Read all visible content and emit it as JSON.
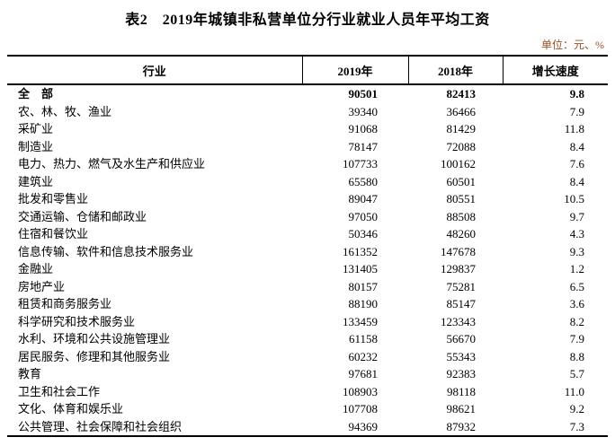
{
  "title": "表2　2019年城镇非私营单位分行业就业人员年平均工资",
  "unit_note": "单位：元、%",
  "colors": {
    "unit_note_color": "#9b4e24",
    "border_color": "#000000",
    "background": "#ffffff"
  },
  "table": {
    "headers": [
      "行业",
      "2019年",
      "2018年",
      "增长速度"
    ],
    "rows": [
      {
        "industry": "全　部",
        "y2019": "90501",
        "y2018": "82413",
        "growth": "9.8",
        "bold": true
      },
      {
        "industry": "农、林、牧、渔业",
        "y2019": "39340",
        "y2018": "36466",
        "growth": "7.9",
        "bold": false
      },
      {
        "industry": "采矿业",
        "y2019": "91068",
        "y2018": "81429",
        "growth": "11.8",
        "bold": false
      },
      {
        "industry": "制造业",
        "y2019": "78147",
        "y2018": "72088",
        "growth": "8.4",
        "bold": false
      },
      {
        "industry": "电力、热力、燃气及水生产和供应业",
        "y2019": "107733",
        "y2018": "100162",
        "growth": "7.6",
        "bold": false
      },
      {
        "industry": "建筑业",
        "y2019": "65580",
        "y2018": "60501",
        "growth": "8.4",
        "bold": false
      },
      {
        "industry": "批发和零售业",
        "y2019": "89047",
        "y2018": "80551",
        "growth": "10.5",
        "bold": false
      },
      {
        "industry": "交通运输、仓储和邮政业",
        "y2019": "97050",
        "y2018": "88508",
        "growth": "9.7",
        "bold": false
      },
      {
        "industry": "住宿和餐饮业",
        "y2019": "50346",
        "y2018": "48260",
        "growth": "4.3",
        "bold": false
      },
      {
        "industry": "信息传输、软件和信息技术服务业",
        "y2019": "161352",
        "y2018": "147678",
        "growth": "9.3",
        "bold": false
      },
      {
        "industry": "金融业",
        "y2019": "131405",
        "y2018": "129837",
        "growth": "1.2",
        "bold": false
      },
      {
        "industry": "房地产业",
        "y2019": "80157",
        "y2018": "75281",
        "growth": "6.5",
        "bold": false
      },
      {
        "industry": "租赁和商务服务业",
        "y2019": "88190",
        "y2018": "85147",
        "growth": "3.6",
        "bold": false
      },
      {
        "industry": "科学研究和技术服务业",
        "y2019": "133459",
        "y2018": "123343",
        "growth": "8.2",
        "bold": false
      },
      {
        "industry": "水利、环境和公共设施管理业",
        "y2019": "61158",
        "y2018": "56670",
        "growth": "7.9",
        "bold": false
      },
      {
        "industry": "居民服务、修理和其他服务业",
        "y2019": "60232",
        "y2018": "55343",
        "growth": "8.8",
        "bold": false
      },
      {
        "industry": "教育",
        "y2019": "97681",
        "y2018": "92383",
        "growth": "5.7",
        "bold": false
      },
      {
        "industry": "卫生和社会工作",
        "y2019": "108903",
        "y2018": "98118",
        "growth": "11.0",
        "bold": false
      },
      {
        "industry": "文化、体育和娱乐业",
        "y2019": "107708",
        "y2018": "98621",
        "growth": "9.2",
        "bold": false
      },
      {
        "industry": "公共管理、社会保障和社会组织",
        "y2019": "94369",
        "y2018": "87932",
        "growth": "7.3",
        "bold": false
      }
    ]
  }
}
